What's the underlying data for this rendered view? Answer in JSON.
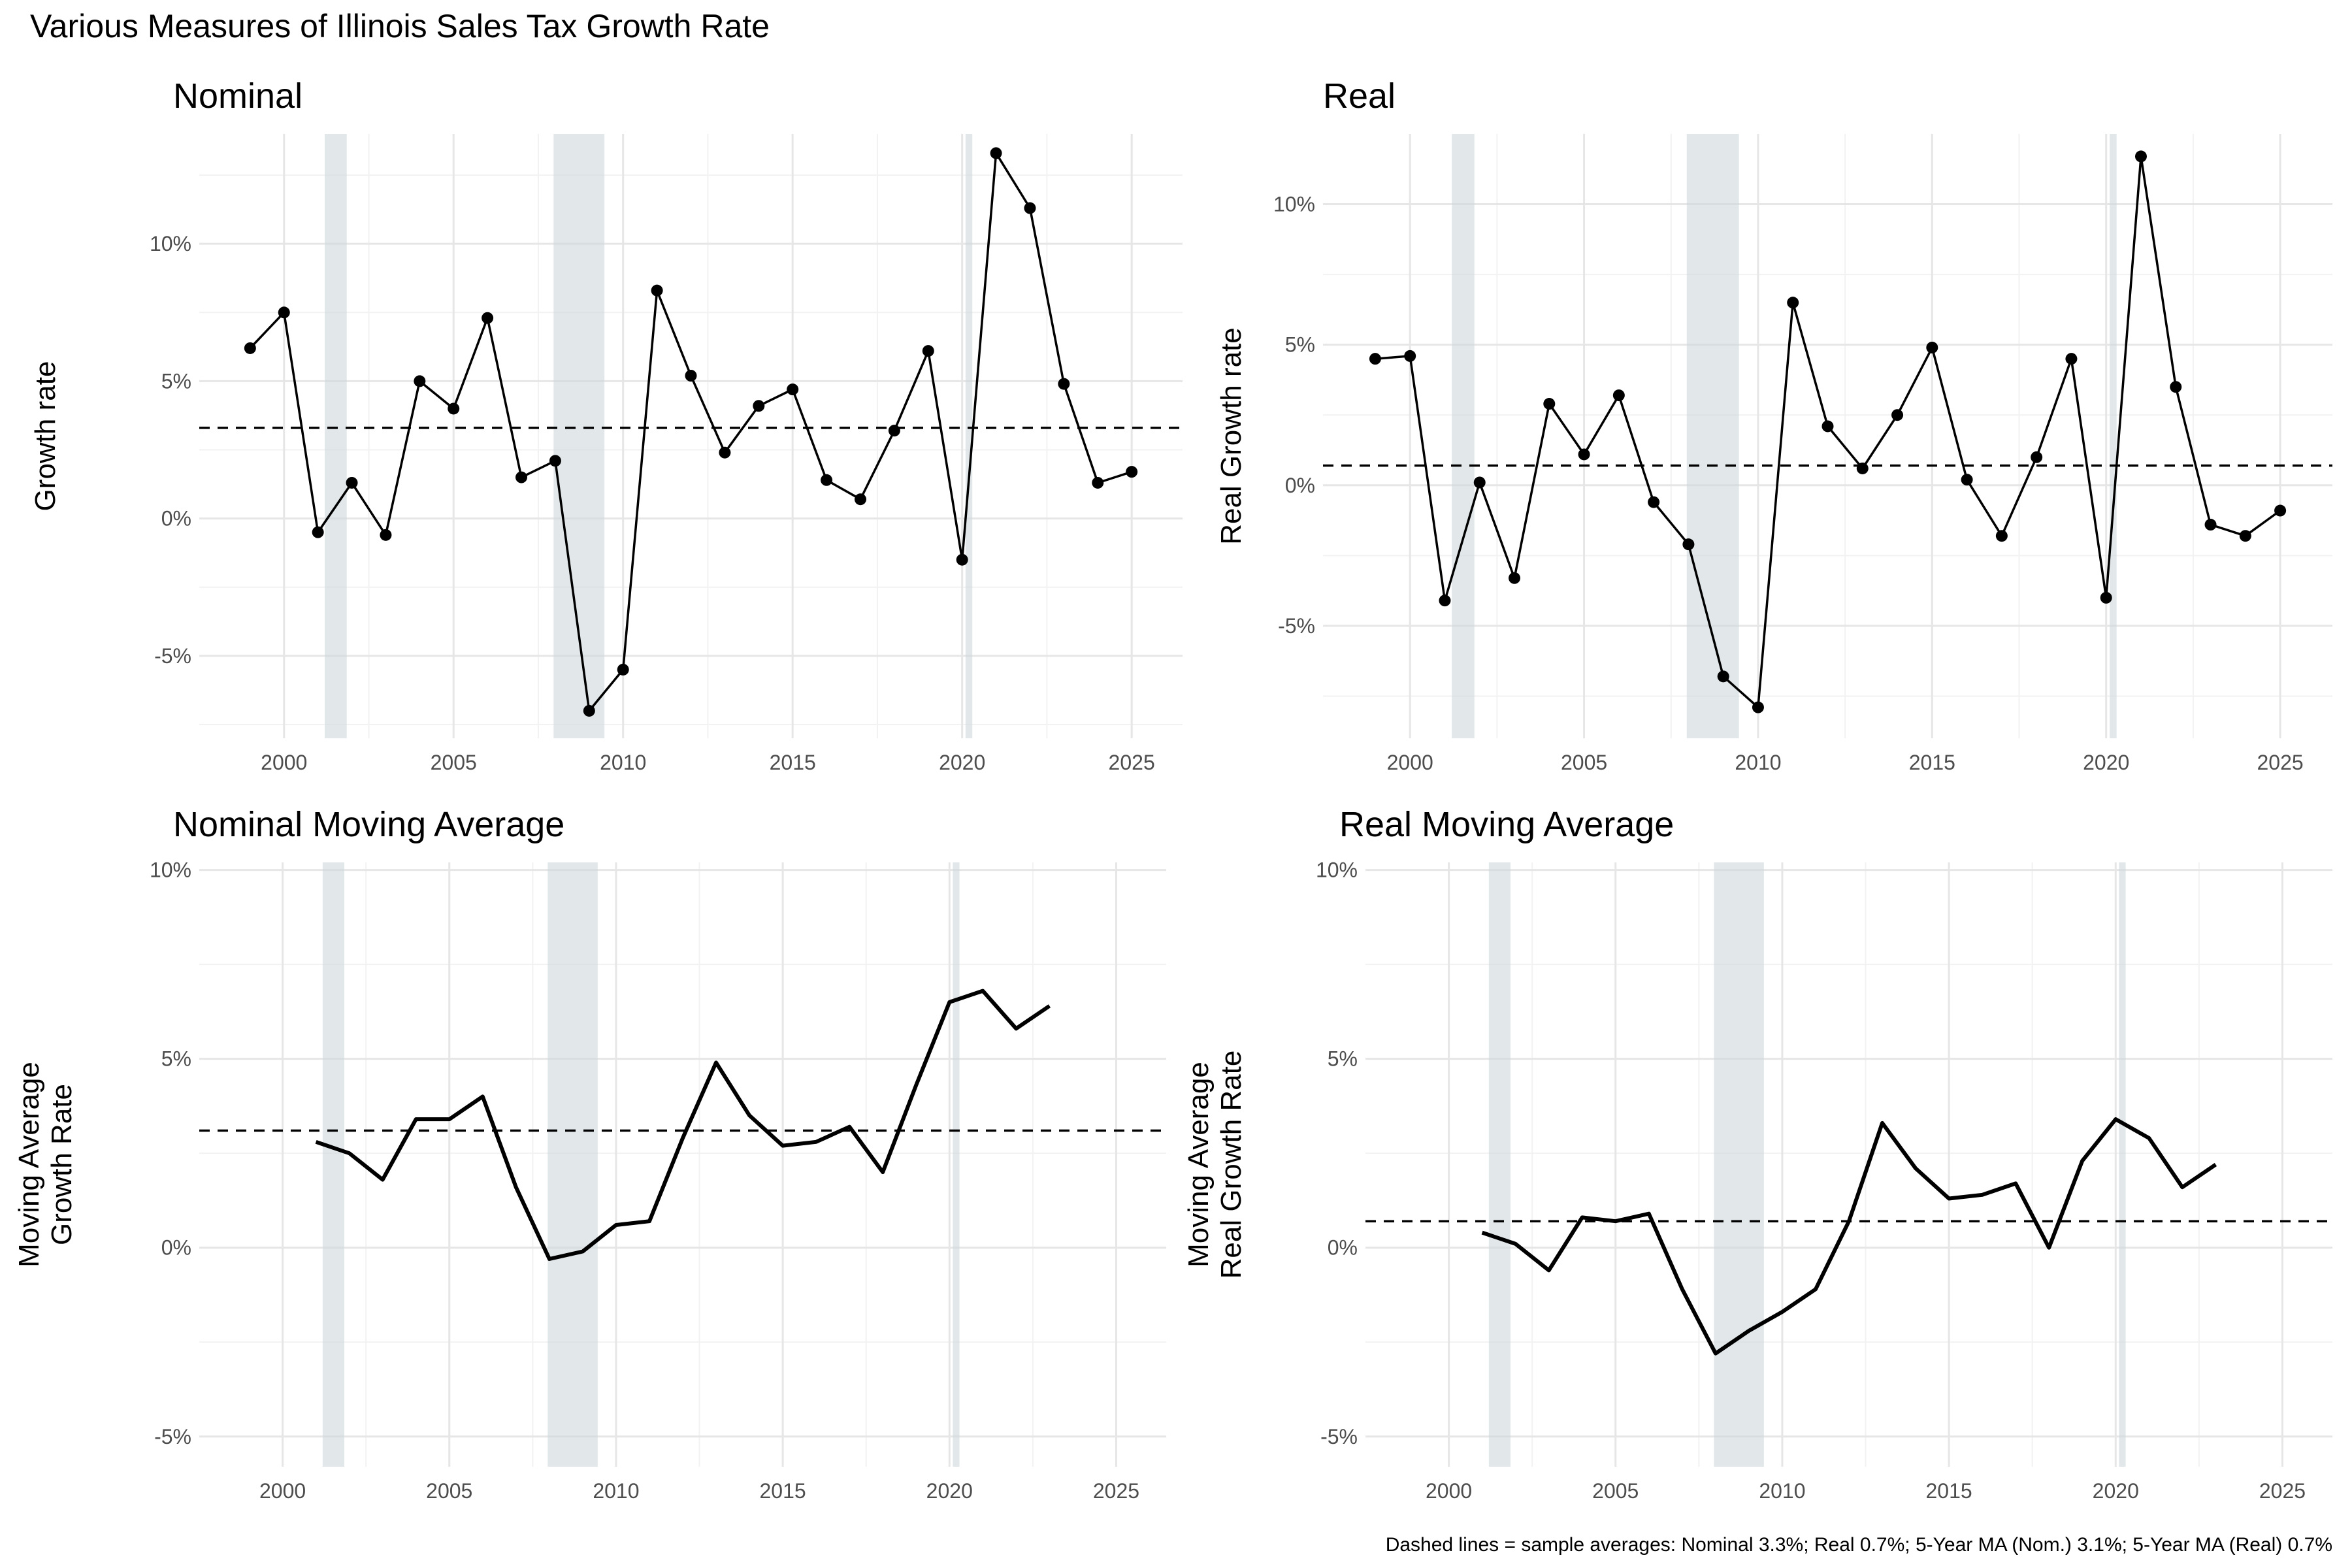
{
  "title": "Various Measures of Illinois Sales Tax Growth Rate",
  "caption": "Dashed lines = sample averages: Nominal 3.3%; Real 0.7%; 5-Year MA (Nom.) 3.1%; 5-Year MA (Real) 0.7%",
  "colors": {
    "line": "#000000",
    "dashed": "#000000",
    "shade": "#cfd8dc",
    "grid_major": "#e6e6e6",
    "grid_minor": "#f2f2f2",
    "tick_text": "#4d4d4d"
  },
  "recessions": [
    [
      2001.2,
      2001.85
    ],
    [
      2007.95,
      2009.45
    ],
    [
      2020.1,
      2020.3
    ]
  ],
  "chart_data": [
    {
      "id": "nominal",
      "type": "line",
      "title": "Nominal",
      "ylabel": "Growth rate",
      "markers": true,
      "xlim": [
        1997.5,
        2026.5
      ],
      "ylim": [
        -8,
        14
      ],
      "xticks": [
        2000,
        2005,
        2010,
        2015,
        2020,
        2025
      ],
      "xtick_labels": [
        "2000",
        "2005",
        "2010",
        "2015",
        "2020",
        "2025"
      ],
      "yticks": [
        -5,
        0,
        5,
        10
      ],
      "ytick_labels": [
        "-5%",
        "0%",
        "5%",
        "10%"
      ],
      "average": 3.3,
      "x": [
        1999,
        2000,
        2001,
        2002,
        2003,
        2004,
        2005,
        2006,
        2007,
        2008,
        2009,
        2010,
        2011,
        2012,
        2013,
        2014,
        2015,
        2016,
        2017,
        2018,
        2019,
        2020,
        2021,
        2022,
        2023,
        2024,
        2025
      ],
      "y": [
        6.2,
        7.5,
        -0.5,
        1.3,
        -0.6,
        5.0,
        4.0,
        7.3,
        1.5,
        2.1,
        -7.0,
        -5.5,
        8.3,
        5.2,
        2.4,
        4.1,
        4.7,
        1.4,
        0.7,
        3.2,
        6.1,
        -1.5,
        13.3,
        11.3,
        4.9,
        1.3,
        1.7
      ]
    },
    {
      "id": "real",
      "type": "line",
      "title": "Real",
      "ylabel": "Real Growth rate",
      "markers": true,
      "xlim": [
        1997.5,
        2026.5
      ],
      "ylim": [
        -9,
        12.5
      ],
      "xticks": [
        2000,
        2005,
        2010,
        2015,
        2020,
        2025
      ],
      "xtick_labels": [
        "2000",
        "2005",
        "2010",
        "2015",
        "2020",
        "2025"
      ],
      "yticks": [
        -5,
        0,
        5,
        10
      ],
      "ytick_labels": [
        "-5%",
        "0%",
        "5%",
        "10%"
      ],
      "average": 0.7,
      "x": [
        1999,
        2000,
        2001,
        2002,
        2003,
        2004,
        2005,
        2006,
        2007,
        2008,
        2009,
        2010,
        2011,
        2012,
        2013,
        2014,
        2015,
        2016,
        2017,
        2018,
        2019,
        2020,
        2021,
        2022,
        2023,
        2024,
        2025
      ],
      "y": [
        4.5,
        4.6,
        -4.1,
        0.1,
        -3.3,
        2.9,
        1.1,
        3.2,
        -0.6,
        -2.1,
        -6.8,
        -7.9,
        6.5,
        2.1,
        0.6,
        2.5,
        4.9,
        0.2,
        -1.8,
        1.0,
        4.5,
        -4.0,
        11.7,
        3.5,
        -1.4,
        -1.8,
        -0.9
      ]
    },
    {
      "id": "nominal-ma",
      "type": "line",
      "title": "Nominal Moving Average",
      "ylabel_lines": [
        "Moving Average",
        "Growth Rate"
      ],
      "markers": false,
      "xlim": [
        1997.5,
        2026.5
      ],
      "ylim": [
        -5.8,
        10.2
      ],
      "xticks": [
        2000,
        2005,
        2010,
        2015,
        2020,
        2025
      ],
      "xtick_labels": [
        "2000",
        "2005",
        "2010",
        "2015",
        "2020",
        "2025"
      ],
      "yticks": [
        -5,
        0,
        5,
        10
      ],
      "ytick_labels": [
        "-5%",
        "0%",
        "5%",
        "10%"
      ],
      "average": 3.1,
      "x": [
        2001,
        2002,
        2003,
        2004,
        2005,
        2006,
        2007,
        2008,
        2009,
        2010,
        2011,
        2012,
        2013,
        2014,
        2015,
        2016,
        2017,
        2018,
        2019,
        2020,
        2021,
        2022,
        2023
      ],
      "y": [
        2.8,
        2.5,
        1.8,
        3.4,
        3.4,
        4.0,
        1.6,
        -0.3,
        -0.1,
        0.6,
        0.7,
        2.9,
        4.9,
        3.5,
        2.7,
        2.8,
        3.2,
        2.0,
        4.3,
        6.5,
        6.8,
        5.8,
        6.4
      ]
    },
    {
      "id": "real-ma",
      "type": "line",
      "title": "Real Moving Average",
      "ylabel_lines": [
        "Moving Average",
        "Real Growth Rate"
      ],
      "markers": false,
      "xlim": [
        1997.5,
        2026.5
      ],
      "ylim": [
        -5.8,
        10.2
      ],
      "xticks": [
        2000,
        2005,
        2010,
        2015,
        2020,
        2025
      ],
      "xtick_labels": [
        "2000",
        "2005",
        "2010",
        "2015",
        "2020",
        "2025"
      ],
      "yticks": [
        -5,
        0,
        5,
        10
      ],
      "ytick_labels": [
        "-5%",
        "0%",
        "5%",
        "10%"
      ],
      "average": 0.7,
      "x": [
        2001,
        2002,
        2003,
        2004,
        2005,
        2006,
        2007,
        2008,
        2009,
        2010,
        2011,
        2012,
        2013,
        2014,
        2015,
        2016,
        2017,
        2018,
        2019,
        2020,
        2021,
        2022,
        2023
      ],
      "y": [
        0.4,
        0.1,
        -0.6,
        0.8,
        0.7,
        0.9,
        -1.1,
        -2.8,
        -2.2,
        -1.7,
        -1.1,
        0.7,
        3.3,
        2.1,
        1.3,
        1.4,
        1.7,
        0.0,
        2.3,
        3.4,
        2.9,
        1.6,
        2.2
      ]
    }
  ]
}
